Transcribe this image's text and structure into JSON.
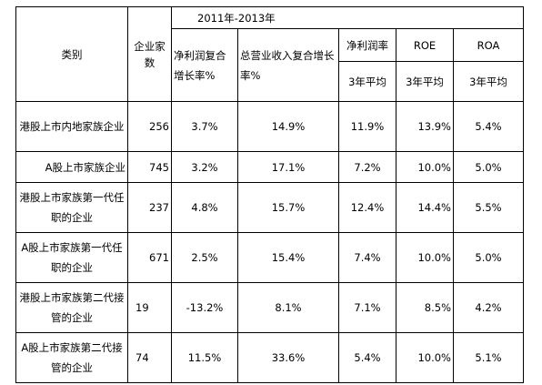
{
  "header": {
    "category": "类别",
    "company_count": "企业家数",
    "period": "2011年-2013年",
    "profit_growth": "净利润复合增长率%",
    "revenue_growth": "总营业收入复合增长率%",
    "net_margin": "净利润率",
    "roe": "ROE",
    "roa": "ROA",
    "net_margin_sub": "3年平均",
    "roe_sub": "3年平均",
    "roa_sub": "3年平均"
  },
  "rows": [
    {
      "category": "港股上市内地家族企业",
      "count": "256",
      "profit_growth": "3.7%",
      "revenue_growth": "14.9%",
      "net_margin": "11.9%",
      "roe": "13.9%",
      "roa": "5.4%"
    },
    {
      "category": "A股上市家族企业",
      "count": "745",
      "profit_growth": "3.2%",
      "revenue_growth": "17.1%",
      "net_margin": "7.2%",
      "roe": "10.0%",
      "roa": "5.0%"
    },
    {
      "category": "港股上市家族第一代任职的企业",
      "count": "237",
      "profit_growth": "4.8%",
      "revenue_growth": "15.7%",
      "net_margin": "12.4%",
      "roe": "14.4%",
      "roa": "5.5%"
    },
    {
      "category": "A股上市家族第一代任职的企业",
      "count": "671",
      "profit_growth": "2.5%",
      "revenue_growth": "15.4%",
      "net_margin": "7.4%",
      "roe": "10.0%",
      "roa": "5.0%"
    },
    {
      "category": "港股上市家族第二代接管的企业",
      "count": "19",
      "profit_growth": "-13.2%",
      "revenue_growth": "8.1%",
      "net_margin": "7.1%",
      "roe": "8.5%",
      "roa": "4.2%"
    },
    {
      "category": "A股上市家族第二代接管的企业",
      "count": "74",
      "profit_growth": "11.5%",
      "revenue_growth": "33.6%",
      "net_margin": "5.4%",
      "roe": "10.0%",
      "roa": "5.1%"
    }
  ]
}
